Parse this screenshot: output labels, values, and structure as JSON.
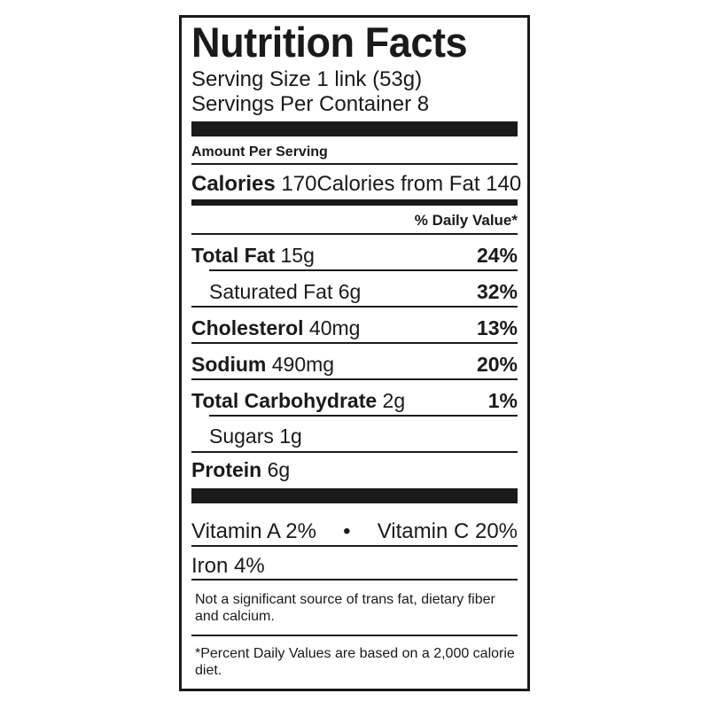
{
  "title": "Nutrition Facts",
  "serving_size": "Serving Size 1 link (53g)",
  "servings_per_container": "Servings Per Container 8",
  "amount_per_serving": "Amount Per Serving",
  "calories": {
    "label": "Calories",
    "value": "170",
    "from_fat": "Calories from Fat 140"
  },
  "daily_value_header": "% Daily Value*",
  "nutrients": [
    {
      "label": "Total Fat",
      "amount": "15g",
      "dv": "24%"
    },
    {
      "label": "Saturated Fat",
      "amount": "6g",
      "dv": "32%"
    },
    {
      "label": "Cholesterol",
      "amount": "40mg",
      "dv": "13%"
    },
    {
      "label": "Sodium",
      "amount": "490mg",
      "dv": "20%"
    },
    {
      "label": "Total Carbohydrate",
      "amount": "2g",
      "dv": "1%"
    },
    {
      "label": "Sugars",
      "amount": "1g",
      "dv": ""
    },
    {
      "label": "Protein",
      "amount": "6g",
      "dv": ""
    }
  ],
  "vitamins": {
    "vitamin_a": "Vitamin A 2%",
    "bullet": "•",
    "vitamin_c": "Vitamin C 20%",
    "iron": "Iron 4%"
  },
  "note": "Not a significant source of trans fat, dietary fiber and calcium.",
  "footnote": "*Percent Daily Values are based on a 2,000 calorie diet."
}
